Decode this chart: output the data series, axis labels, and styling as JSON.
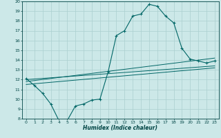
{
  "xlabel": "Humidex (Indice chaleur)",
  "bg_color": "#cce8e8",
  "grid_color": "#aacfcf",
  "line_color": "#006666",
  "xlim": [
    -0.5,
    23.5
  ],
  "ylim": [
    8,
    20
  ],
  "xticks": [
    0,
    1,
    2,
    3,
    4,
    5,
    6,
    7,
    8,
    9,
    10,
    11,
    12,
    13,
    14,
    15,
    16,
    17,
    18,
    19,
    20,
    21,
    22,
    23
  ],
  "yticks": [
    8,
    9,
    10,
    11,
    12,
    13,
    14,
    15,
    16,
    17,
    18,
    19,
    20
  ],
  "curve1_x": [
    0,
    1,
    2,
    3,
    4,
    5,
    6,
    7,
    8,
    9,
    10,
    11,
    12,
    13,
    14,
    15,
    16,
    17,
    18,
    19,
    20,
    21,
    22,
    23
  ],
  "curve1_y": [
    12.1,
    11.4,
    10.6,
    9.5,
    7.8,
    7.8,
    9.3,
    9.5,
    9.9,
    10.0,
    12.8,
    16.5,
    17.0,
    18.5,
    18.7,
    19.7,
    19.5,
    18.5,
    17.8,
    15.2,
    14.1,
    13.9,
    13.7,
    13.9
  ],
  "line1_x": [
    0,
    23
  ],
  "line1_y": [
    12.0,
    13.4
  ],
  "line2_x": [
    0,
    23
  ],
  "line2_y": [
    11.5,
    13.2
  ],
  "line3_x": [
    0,
    23
  ],
  "line3_y": [
    11.8,
    14.2
  ]
}
